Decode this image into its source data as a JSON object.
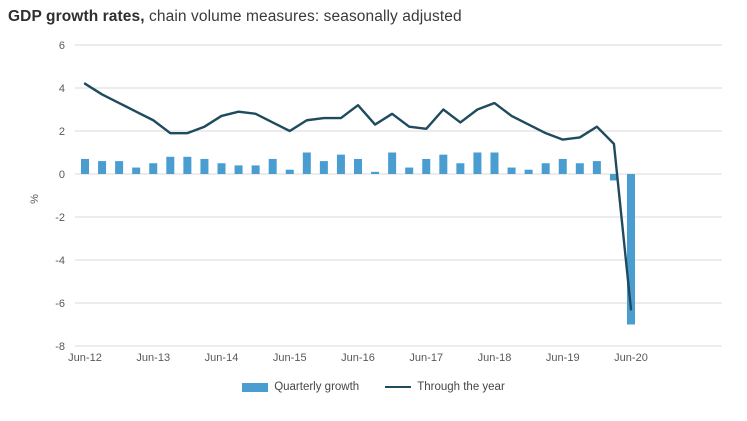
{
  "title": {
    "bold": "GDP growth rates,",
    "regular": " chain volume measures: seasonally adjusted"
  },
  "axes": {
    "y_label": "%",
    "y_tick_labels": [
      "6",
      "4",
      "2",
      "0",
      "-2",
      "-4",
      "-6",
      "-8"
    ],
    "x_tick_labels": [
      "Jun-12",
      "Jun-13",
      "Jun-14",
      "Jun-15",
      "Jun-16",
      "Jun-17",
      "Jun-18",
      "Jun-19",
      "Jun-20"
    ]
  },
  "legend": {
    "items": [
      {
        "label": "Quarterly growth",
        "shape": "rect",
        "color": "#4a9dd1"
      },
      {
        "label": "Through the year",
        "shape": "line",
        "color": "#1f4b5e"
      }
    ]
  },
  "colors": {
    "bar": "#4a9dd1",
    "line": "#1f4b5e",
    "gridline": "#d9d9d9",
    "axis_text": "#595959"
  },
  "chart_data": {
    "type": "bar",
    "title": "GDP growth rates, chain volume measures: seasonally adjusted",
    "xlabel": "",
    "ylabel": "%",
    "ylim": [
      -8,
      6
    ],
    "yticks": [
      6,
      4,
      2,
      0,
      -2,
      -4,
      -6,
      -8
    ],
    "grid": "horizontal",
    "legend_position": "bottom",
    "categories": [
      "Jun-12",
      "Sep-12",
      "Dec-12",
      "Mar-13",
      "Jun-13",
      "Sep-13",
      "Dec-13",
      "Mar-14",
      "Jun-14",
      "Sep-14",
      "Dec-14",
      "Mar-15",
      "Jun-15",
      "Sep-15",
      "Dec-15",
      "Mar-16",
      "Jun-16",
      "Sep-16",
      "Dec-16",
      "Mar-17",
      "Jun-17",
      "Sep-17",
      "Dec-17",
      "Mar-18",
      "Jun-18",
      "Sep-18",
      "Dec-18",
      "Mar-19",
      "Jun-19",
      "Sep-19",
      "Dec-19",
      "Mar-20",
      "Jun-20"
    ],
    "series": [
      {
        "name": "Quarterly growth",
        "type": "bar",
        "color": "#4a9dd1",
        "values": [
          0.7,
          0.6,
          0.6,
          0.3,
          0.5,
          0.8,
          0.8,
          0.7,
          0.5,
          0.4,
          0.4,
          0.7,
          0.2,
          1.0,
          0.6,
          0.9,
          0.7,
          0.1,
          1.0,
          0.3,
          0.7,
          0.9,
          0.5,
          1.0,
          1.0,
          0.3,
          0.2,
          0.5,
          0.7,
          0.5,
          0.6,
          -0.3,
          -7.0
        ]
      },
      {
        "name": "Through the year",
        "type": "line",
        "color": "#1f4b5e",
        "values": [
          4.2,
          3.7,
          3.3,
          2.9,
          2.5,
          1.9,
          1.9,
          2.2,
          2.7,
          2.9,
          2.8,
          2.4,
          2.0,
          2.5,
          2.6,
          2.6,
          3.2,
          2.3,
          2.8,
          2.2,
          2.1,
          3.0,
          2.4,
          3.0,
          3.3,
          2.7,
          2.3,
          1.9,
          1.6,
          1.7,
          2.2,
          1.4,
          -6.3
        ]
      }
    ]
  }
}
